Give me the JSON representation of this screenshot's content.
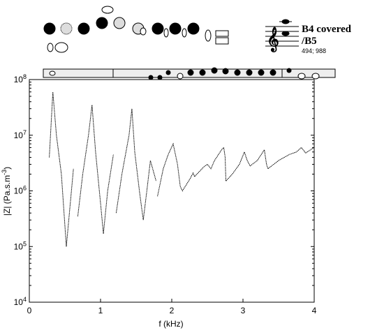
{
  "chart_data": {
    "type": "line",
    "log_y": true,
    "title": "B4 covered",
    "subtitle": "/B5",
    "annotation": "494; 988",
    "xlabel": "f (kHz)",
    "ylabel": {
      "text": "|Z| (Pa.s.m",
      "exponent": "-3",
      "end": ")"
    },
    "xlim": [
      0,
      4
    ],
    "xticks": [
      0,
      1,
      2,
      3,
      4
    ],
    "ylim": [
      10000.0,
      100000000.0
    ],
    "yticks": [
      {
        "value": 10000.0,
        "label": "10",
        "exponent": "4"
      },
      {
        "value": 100000.0,
        "label": "10",
        "exponent": "5"
      },
      {
        "value": 1000000.0,
        "label": "10",
        "exponent": "6"
      },
      {
        "value": 10000000.0,
        "label": "10",
        "exponent": "7"
      },
      {
        "value": 100000000.0,
        "label": "10",
        "exponent": "8"
      }
    ],
    "color": "#000000",
    "x": [
      0.28,
      0.33,
      0.38,
      0.45,
      0.52,
      0.57,
      0.62,
      0.65,
      0.68,
      0.75,
      0.83,
      0.88,
      0.93,
      1.0,
      1.04,
      1.1,
      1.18,
      1.2,
      1.22,
      1.3,
      1.4,
      1.44,
      1.48,
      1.55,
      1.6,
      1.65,
      1.7,
      1.78,
      1.79,
      1.8,
      1.88,
      1.95,
      2.02,
      2.08,
      2.12,
      2.15,
      2.25,
      2.3,
      2.32,
      2.45,
      2.5,
      2.55,
      2.6,
      2.7,
      2.73,
      2.75,
      2.76,
      2.85,
      2.95,
      3.02,
      3.06,
      3.1,
      3.2,
      3.28,
      3.3,
      3.33,
      3.35,
      3.5,
      3.65,
      3.75,
      3.82,
      3.88,
      3.95,
      4.0
    ],
    "values": [
      4000000.0,
      60000000.0,
      10000000.0,
      2000000.0,
      100000.0,
      500000.0,
      2500000.0,
      null,
      350000.0,
      2000000.0,
      10000000.0,
      35000000.0,
      5000000.0,
      600000.0,
      170000.0,
      1000000.0,
      4500000.0,
      null,
      400000.0,
      2000000.0,
      10000000.0,
      30000000.0,
      5000000.0,
      900000.0,
      300000.0,
      1000000.0,
      3500000.0,
      1500000.0,
      null,
      800000.0,
      2500000.0,
      4500000.0,
      7000000.0,
      3000000.0,
      1200000.0,
      1000000.0,
      1600000.0,
      2100000.0,
      1800000.0,
      2700000.0,
      3000000.0,
      2500000.0,
      3500000.0,
      5500000.0,
      6000000.0,
      4000000.0,
      1500000.0,
      2000000.0,
      3000000.0,
      5000000.0,
      3500000.0,
      2800000.0,
      3500000.0,
      5000000.0,
      5500000.0,
      3000000.0,
      2500000.0,
      3500000.0,
      4500000.0,
      5000000.0,
      6000000.0,
      4800000.0,
      5500000.0,
      6000000.0
    ]
  }
}
